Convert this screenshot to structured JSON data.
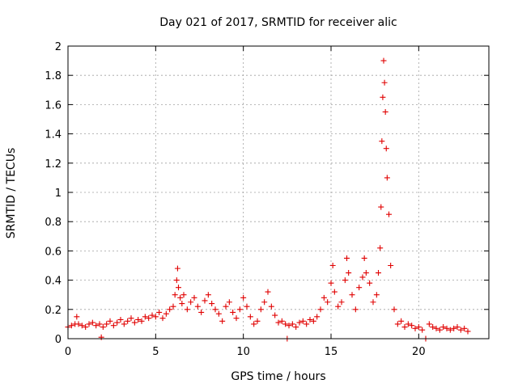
{
  "chart_data": {
    "type": "scatter",
    "title": "Day 021 of 2017, SRMTID for receiver alic",
    "xlabel": "GPS time / hours",
    "ylabel": "SRMTID / TECUs",
    "xlim": [
      0,
      24
    ],
    "ylim": [
      0,
      2
    ],
    "xticks": [
      0,
      5,
      10,
      15,
      20
    ],
    "xtick_labels": [
      "0",
      "5",
      "10",
      "15",
      "20"
    ],
    "yticks": [
      0,
      0.2,
      0.4,
      0.6,
      0.8,
      1,
      1.2,
      1.4,
      1.6,
      1.8,
      2
    ],
    "ytick_labels": [
      "0",
      "0.2",
      "0.4",
      "0.6",
      "0.8",
      "1",
      "1.2",
      "1.4",
      "1.6",
      "1.8",
      "2"
    ],
    "grid": true,
    "marker": "plus",
    "color": "#e00000",
    "series": [
      {
        "name": "SRMTID",
        "x": [
          0.0,
          0.2,
          0.4,
          0.5,
          0.6,
          0.8,
          1.0,
          1.2,
          1.4,
          1.6,
          1.8,
          1.9,
          2.0,
          2.2,
          2.4,
          2.6,
          2.8,
          3.0,
          3.2,
          3.4,
          3.6,
          3.8,
          4.0,
          4.2,
          4.4,
          4.6,
          4.8,
          5.0,
          5.2,
          5.4,
          5.6,
          5.8,
          6.0,
          6.1,
          6.2,
          6.25,
          6.3,
          6.4,
          6.5,
          6.6,
          6.8,
          7.0,
          7.2,
          7.4,
          7.6,
          7.8,
          8.0,
          8.2,
          8.4,
          8.6,
          8.8,
          9.0,
          9.2,
          9.4,
          9.6,
          9.8,
          10.0,
          10.2,
          10.4,
          10.6,
          10.8,
          11.0,
          11.2,
          11.4,
          11.6,
          11.8,
          12.0,
          12.2,
          12.4,
          12.5,
          12.6,
          12.8,
          13.0,
          13.2,
          13.4,
          13.6,
          13.8,
          14.0,
          14.2,
          14.4,
          14.6,
          14.8,
          15.0,
          15.1,
          15.2,
          15.4,
          15.6,
          15.8,
          15.9,
          16.0,
          16.2,
          16.4,
          16.6,
          16.8,
          16.9,
          17.0,
          17.2,
          17.4,
          17.6,
          17.7,
          17.8,
          17.85,
          17.9,
          17.95,
          18.0,
          18.05,
          18.1,
          18.15,
          18.2,
          18.3,
          18.4,
          18.6,
          18.8,
          19.0,
          19.2,
          19.4,
          19.6,
          19.8,
          20.0,
          20.2,
          20.4,
          20.6,
          20.8,
          21.0,
          21.2,
          21.4,
          21.6,
          21.8,
          22.0,
          22.2,
          22.4,
          22.6,
          22.8
        ],
        "y": [
          0.08,
          0.09,
          0.1,
          0.15,
          0.1,
          0.09,
          0.08,
          0.1,
          0.11,
          0.09,
          0.1,
          0.01,
          0.08,
          0.1,
          0.12,
          0.09,
          0.11,
          0.13,
          0.1,
          0.12,
          0.14,
          0.11,
          0.13,
          0.12,
          0.15,
          0.14,
          0.16,
          0.15,
          0.18,
          0.14,
          0.17,
          0.2,
          0.22,
          0.3,
          0.4,
          0.48,
          0.35,
          0.28,
          0.24,
          0.3,
          0.2,
          0.25,
          0.28,
          0.22,
          0.18,
          0.26,
          0.3,
          0.24,
          0.2,
          0.17,
          0.12,
          0.22,
          0.25,
          0.18,
          0.14,
          0.2,
          0.28,
          0.22,
          0.15,
          0.1,
          0.12,
          0.2,
          0.25,
          0.32,
          0.22,
          0.16,
          0.11,
          0.12,
          0.1,
          0.0,
          0.09,
          0.1,
          0.08,
          0.11,
          0.12,
          0.1,
          0.13,
          0.12,
          0.15,
          0.2,
          0.28,
          0.25,
          0.38,
          0.5,
          0.32,
          0.22,
          0.25,
          0.4,
          0.55,
          0.45,
          0.3,
          0.2,
          0.35,
          0.42,
          0.55,
          0.45,
          0.38,
          0.25,
          0.3,
          0.45,
          0.62,
          0.9,
          1.35,
          1.65,
          1.9,
          1.75,
          1.55,
          1.3,
          1.1,
          0.85,
          0.5,
          0.2,
          0.1,
          0.12,
          0.08,
          0.1,
          0.09,
          0.07,
          0.08,
          0.06,
          0.0,
          0.1,
          0.08,
          0.07,
          0.06,
          0.08,
          0.07,
          0.06,
          0.07,
          0.08,
          0.06,
          0.07,
          0.05
        ]
      }
    ]
  }
}
